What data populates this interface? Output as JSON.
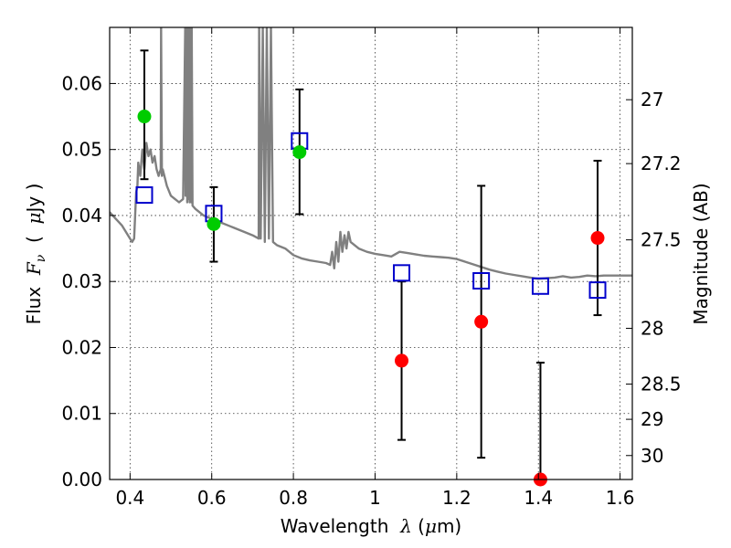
{
  "chart_data": {
    "type": "scatter",
    "title": "",
    "xlabel": {
      "prefix": "Wavelength  ",
      "symbol": "λ",
      "unit": " (",
      "mu": "μ",
      "unit_end": "m)"
    },
    "ylabel": {
      "prefix": "Flux  ",
      "symbol": "F",
      "sub": "ν",
      "unit_open": "  (  ",
      "mu": "μ",
      "unit_end": "Jy  )"
    },
    "y2label": "Magnitude (AB)",
    "xlim": [
      0.35,
      1.63
    ],
    "ylim": [
      0.0,
      0.0685
    ],
    "grid": true,
    "x_ticks": [
      0.4,
      0.6,
      0.8,
      1.0,
      1.2,
      1.4,
      1.6
    ],
    "x_tick_labels": [
      "0.4",
      "0.6",
      "0.8",
      "1",
      "1.2",
      "1.4",
      "1.6"
    ],
    "y_ticks": [
      0.0,
      0.01,
      0.02,
      0.03,
      0.04,
      0.05,
      0.06
    ],
    "y_tick_labels": [
      "0.00",
      "0.01",
      "0.02",
      "0.03",
      "0.04",
      "0.05",
      "0.06"
    ],
    "mag_ticks": [
      27,
      27.2,
      27.5,
      28,
      28.5,
      29,
      30
    ],
    "mag_tick_labels": [
      "27",
      "27.2",
      "27.5",
      "28",
      "28.5",
      "29",
      "30"
    ],
    "colors": {
      "model": "#808080",
      "detection": "#00cc00",
      "upper": "#ff0000",
      "synthetic": "#0000cc",
      "errorbar": "#000000"
    },
    "series": [
      {
        "kind": "model-spectrum",
        "x": [
          0.35,
          0.38,
          0.4,
          0.405,
          0.41,
          0.415,
          0.418,
          0.42,
          0.425,
          0.43,
          0.435,
          0.44,
          0.445,
          0.45,
          0.455,
          0.46,
          0.465,
          0.47,
          0.475,
          0.476,
          0.478,
          0.48,
          0.49,
          0.5,
          0.51,
          0.52,
          0.53,
          0.535,
          0.536,
          0.538,
          0.54,
          0.541,
          0.543,
          0.545,
          0.546,
          0.548,
          0.55,
          0.551,
          0.553,
          0.56,
          0.58,
          0.6,
          0.62,
          0.64,
          0.66,
          0.68,
          0.7,
          0.715,
          0.716,
          0.72,
          0.725,
          0.73,
          0.735,
          0.74,
          0.745,
          0.75,
          0.76,
          0.78,
          0.8,
          0.82,
          0.84,
          0.86,
          0.88,
          0.89,
          0.895,
          0.9,
          0.905,
          0.91,
          0.915,
          0.92,
          0.925,
          0.93,
          0.935,
          0.94,
          0.96,
          0.98,
          1.0,
          1.02,
          1.04,
          1.06,
          1.08,
          1.1,
          1.12,
          1.14,
          1.16,
          1.18,
          1.2,
          1.22,
          1.24,
          1.26,
          1.28,
          1.3,
          1.32,
          1.34,
          1.36,
          1.38,
          1.4,
          1.42,
          1.44,
          1.46,
          1.48,
          1.5,
          1.52,
          1.54,
          1.56,
          1.58,
          1.6,
          1.62,
          1.63
        ],
        "y": [
          0.0405,
          0.0385,
          0.0365,
          0.036,
          0.0365,
          0.0435,
          0.0445,
          0.048,
          0.046,
          0.05,
          0.047,
          0.051,
          0.049,
          0.05,
          0.048,
          0.049,
          0.047,
          0.046,
          0.047,
          0.0685,
          0.046,
          0.047,
          0.0445,
          0.043,
          0.0425,
          0.042,
          0.0425,
          0.0685,
          0.043,
          0.0685,
          0.042,
          0.0685,
          0.0425,
          0.0685,
          0.042,
          0.0685,
          0.042,
          0.0685,
          0.0415,
          0.041,
          0.04,
          0.0395,
          0.039,
          0.0385,
          0.038,
          0.0375,
          0.037,
          0.0365,
          0.0685,
          0.0365,
          0.0685,
          0.036,
          0.0685,
          0.0365,
          0.0685,
          0.036,
          0.0355,
          0.035,
          0.034,
          0.0335,
          0.0332,
          0.033,
          0.0328,
          0.0325,
          0.0345,
          0.032,
          0.036,
          0.033,
          0.0375,
          0.0345,
          0.037,
          0.035,
          0.0375,
          0.036,
          0.035,
          0.0345,
          0.0342,
          0.034,
          0.0338,
          0.0345,
          0.0343,
          0.0341,
          0.0339,
          0.0338,
          0.0337,
          0.0336,
          0.0334,
          0.033,
          0.0326,
          0.0322,
          0.0318,
          0.0315,
          0.0312,
          0.031,
          0.0308,
          0.0306,
          0.0304,
          0.0305,
          0.0306,
          0.0308,
          0.0306,
          0.0307,
          0.0309,
          0.0308,
          0.0309,
          0.0309,
          0.0309,
          0.0309,
          0.0309
        ]
      },
      {
        "kind": "detections",
        "points": [
          {
            "x": 0.435,
            "y": 0.055,
            "yerr_low": 0.0455,
            "yerr_high": 0.065
          },
          {
            "x": 0.605,
            "y": 0.0387,
            "yerr_low": 0.033,
            "yerr_high": 0.0443
          },
          {
            "x": 0.815,
            "y": 0.0496,
            "yerr_low": 0.0402,
            "yerr_high": 0.0591
          }
        ]
      },
      {
        "kind": "upper-limits",
        "points": [
          {
            "x": 1.065,
            "y": 0.018,
            "yerr_low": 0.006,
            "yerr_high": 0.03
          },
          {
            "x": 1.26,
            "y": 0.0239,
            "yerr_low": 0.0033,
            "yerr_high": 0.0445
          },
          {
            "x": 1.405,
            "y": 0.0,
            "yerr_low": 0.0,
            "yerr_high": 0.0177
          },
          {
            "x": 1.545,
            "y": 0.0366,
            "yerr_low": 0.0249,
            "yerr_high": 0.0483
          }
        ]
      },
      {
        "kind": "synthetic-photometry",
        "points": [
          {
            "x": 0.435,
            "y": 0.0431
          },
          {
            "x": 0.605,
            "y": 0.0403
          },
          {
            "x": 0.815,
            "y": 0.0513
          },
          {
            "x": 1.065,
            "y": 0.0313
          },
          {
            "x": 1.26,
            "y": 0.0301
          },
          {
            "x": 1.405,
            "y": 0.0293
          },
          {
            "x": 1.545,
            "y": 0.0287
          }
        ]
      }
    ]
  }
}
